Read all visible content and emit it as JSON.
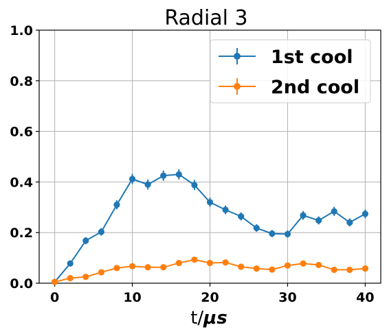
{
  "chart_data": {
    "type": "line",
    "title": "Radial 3",
    "xlabel": "t/",
    "xlabel_unit": "μs",
    "ylabel": "",
    "xlim": [
      -2,
      42
    ],
    "ylim": [
      0,
      1.0
    ],
    "xticks": [
      0,
      10,
      20,
      30,
      40
    ],
    "yticks": [
      0.0,
      0.2,
      0.4,
      0.6,
      0.8,
      1.0
    ],
    "xtick_labels": [
      "0",
      "10",
      "20",
      "30",
      "40"
    ],
    "ytick_labels": [
      "0.0",
      "0.2",
      "0.4",
      "0.6",
      "0.8",
      "1.0"
    ],
    "grid": true,
    "legend_position": "top-right",
    "x": [
      0,
      2,
      4,
      6,
      8,
      10,
      12,
      14,
      16,
      18,
      20,
      22,
      24,
      26,
      28,
      30,
      32,
      34,
      36,
      38,
      40
    ],
    "series": [
      {
        "name": "1st cool",
        "color": "#1f77b4",
        "values": [
          0.005,
          0.078,
          0.168,
          0.203,
          0.31,
          0.412,
          0.39,
          0.425,
          0.43,
          0.388,
          0.32,
          0.29,
          0.264,
          0.218,
          0.196,
          0.194,
          0.268,
          0.248,
          0.284,
          0.24,
          0.274
        ],
        "errors": [
          0.004,
          0.01,
          0.014,
          0.015,
          0.018,
          0.02,
          0.02,
          0.02,
          0.02,
          0.02,
          0.018,
          0.017,
          0.016,
          0.015,
          0.014,
          0.014,
          0.017,
          0.016,
          0.018,
          0.016,
          0.017
        ]
      },
      {
        "name": "2nd cool",
        "color": "#ff7f0e",
        "values": [
          0.005,
          0.02,
          0.025,
          0.043,
          0.06,
          0.067,
          0.063,
          0.063,
          0.08,
          0.093,
          0.08,
          0.082,
          0.065,
          0.058,
          0.054,
          0.07,
          0.078,
          0.072,
          0.053,
          0.053,
          0.058
        ],
        "errors": [
          0.003,
          0.006,
          0.006,
          0.008,
          0.009,
          0.009,
          0.009,
          0.009,
          0.01,
          0.011,
          0.01,
          0.01,
          0.009,
          0.009,
          0.008,
          0.009,
          0.01,
          0.009,
          0.008,
          0.008,
          0.009
        ]
      }
    ]
  }
}
